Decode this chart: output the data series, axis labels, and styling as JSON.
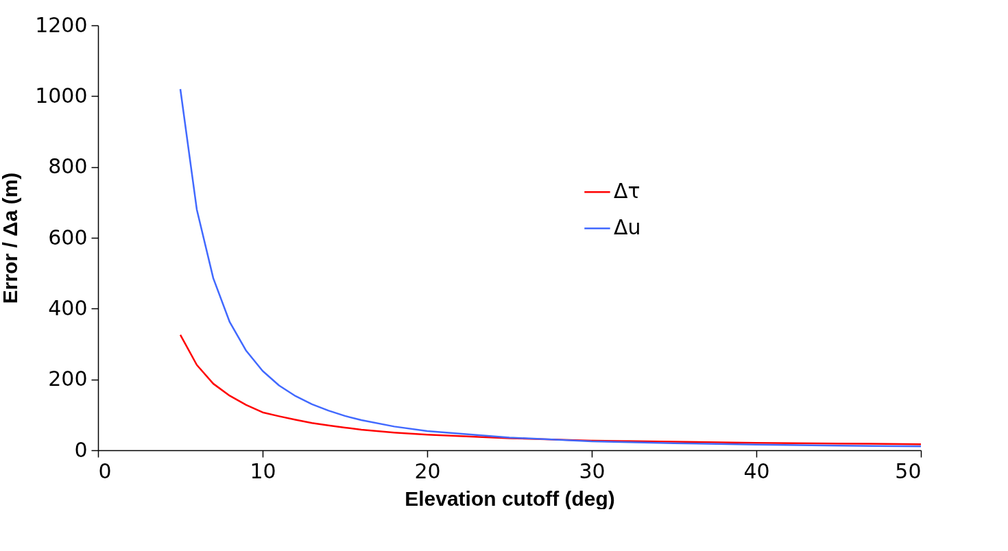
{
  "chart_data": {
    "type": "line",
    "xlabel": "Elevation cutoff (deg)",
    "ylabel": "Error / Δa (m)",
    "xlim": [
      0,
      50
    ],
    "xticks": [
      0,
      10,
      20,
      30,
      40,
      50
    ],
    "ylim": [
      0,
      1200
    ],
    "yticks": [
      0,
      200,
      400,
      600,
      800,
      1000,
      1200
    ],
    "grid": false,
    "legend": "right",
    "marker": "none",
    "line_style": "solid",
    "series": [
      {
        "name": "Δτ",
        "color": "#ff0000",
        "x": [
          5,
          6,
          7,
          8,
          9,
          10,
          11,
          12,
          13,
          14,
          15,
          16,
          18,
          20,
          25,
          30,
          35,
          40,
          45,
          50
        ],
        "values": [
          326,
          241,
          188,
          154,
          128,
          107,
          96,
          86,
          77,
          70,
          64,
          58,
          50,
          44,
          34,
          27,
          24,
          21,
          19,
          17
        ]
      },
      {
        "name": "Δu",
        "color": "#4169ff",
        "x": [
          5,
          6,
          7,
          8,
          9,
          10,
          11,
          12,
          13,
          14,
          15,
          16,
          18,
          20,
          25,
          30,
          35,
          40,
          45,
          50
        ],
        "values": [
          1020,
          680,
          486,
          362,
          281,
          224,
          183,
          153,
          130,
          112,
          97,
          85,
          67,
          54,
          36,
          25,
          20,
          16,
          13,
          11
        ]
      }
    ]
  }
}
